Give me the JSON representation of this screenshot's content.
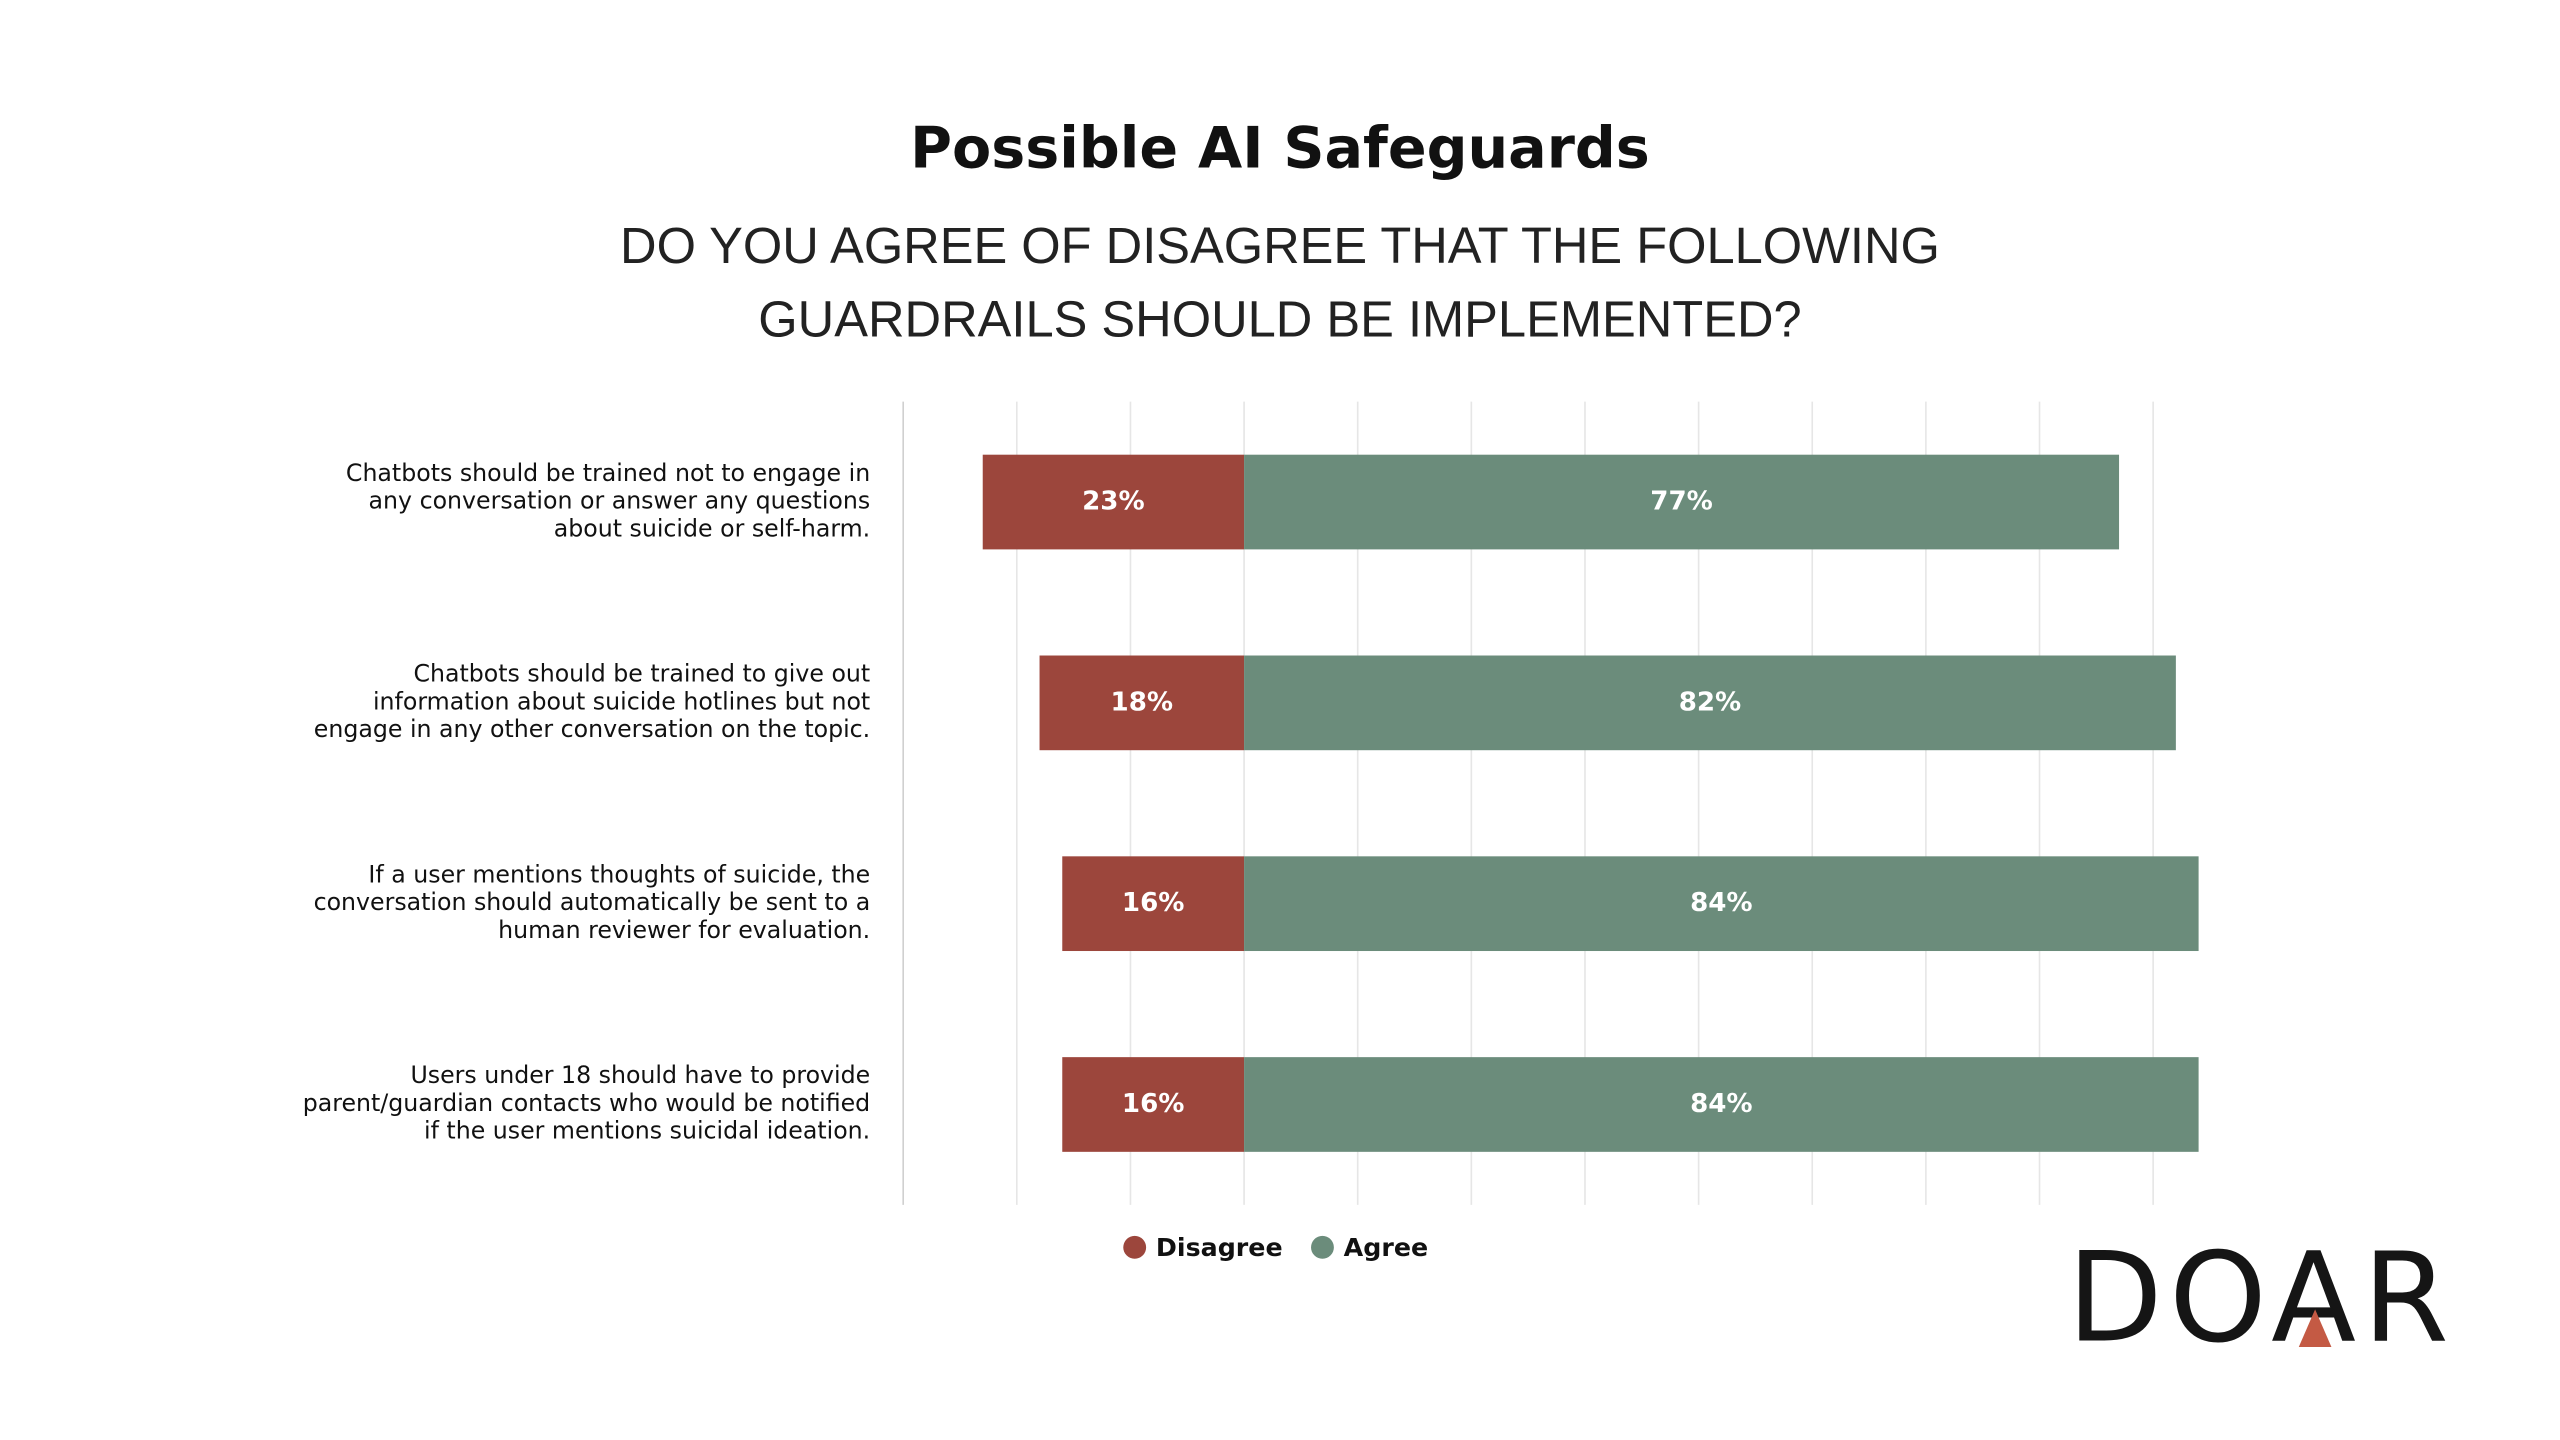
{
  "chart_data": {
    "type": "bar",
    "orientation": "horizontal",
    "diverging": true,
    "title": "Possible AI Safeguards",
    "subtitle": [
      "DO YOU AGREE OF DISAGREE THAT THE FOLLOWING",
      "GUARDRAILS SHOULD BE IMPLEMENTED?"
    ],
    "categories": [
      [
        "Chatbots should be trained not to engage in",
        "any conversation or answer any questions",
        "about suicide or self-harm."
      ],
      [
        "Chatbots should be trained to give out",
        "information about suicide hotlines but not",
        "engage in any other conversation on the topic."
      ],
      [
        "If a user mentions thoughts of suicide, the",
        "conversation should automatically be sent to a",
        "human reviewer for evaluation."
      ],
      [
        "Users under 18 should have to provide",
        "parent/guardian contacts who would be notified",
        "if the user mentions suicidal ideation."
      ]
    ],
    "series": [
      {
        "name": "Disagree",
        "color": "#9c463c",
        "values": [
          23,
          18,
          16,
          16
        ],
        "value_labels": [
          "23%",
          "18%",
          "16%",
          "16%"
        ]
      },
      {
        "name": "Agree",
        "color": "#6b8c7b",
        "values": [
          77,
          82,
          84,
          84
        ],
        "value_labels": [
          "77%",
          "82%",
          "84%",
          "84%"
        ]
      }
    ],
    "xlim": [
      -30,
      85
    ],
    "xticks": [
      -30,
      -20,
      -10,
      0,
      10,
      20,
      30,
      40,
      50,
      60,
      70,
      80
    ],
    "grid": true,
    "legend": "bottom",
    "logo": "DOAR"
  }
}
